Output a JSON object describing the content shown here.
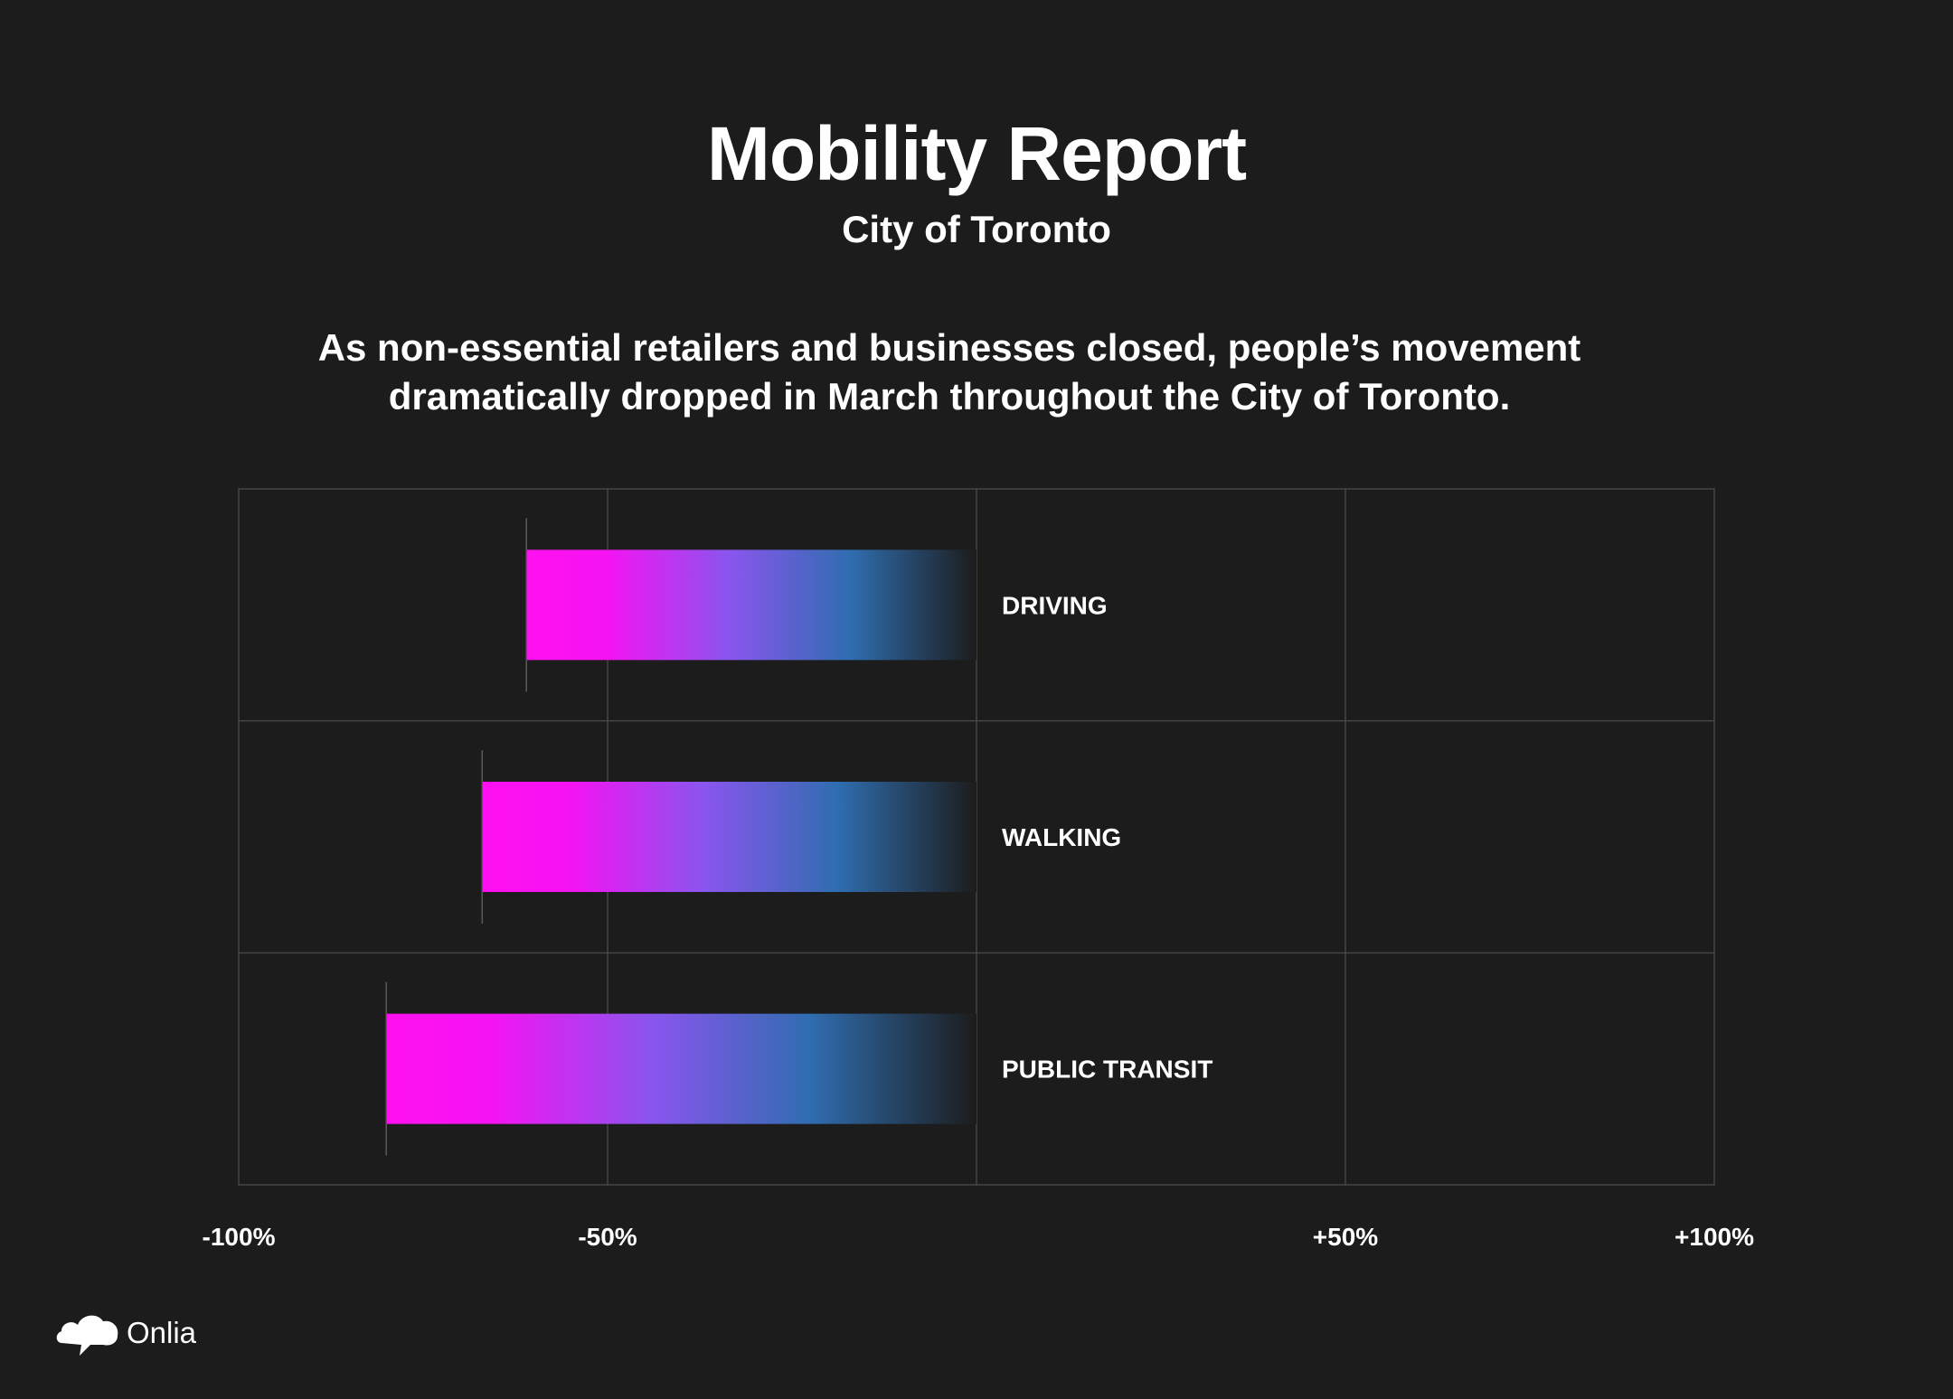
{
  "header": {
    "title": "Mobility Report",
    "subtitle": "City of Toronto",
    "description": "As non-essential retailers and businesses closed, people’s movement dramatically dropped in March throughout the City of Toronto."
  },
  "chart_data": {
    "type": "bar",
    "orientation": "horizontal",
    "categories": [
      "DRIVING",
      "WALKING",
      "PUBLIC TRANSIT"
    ],
    "values": [
      -61,
      -67,
      -80
    ],
    "xlim": [
      -100,
      100
    ],
    "tick_values": [
      -100,
      -50,
      50,
      100
    ],
    "tick_labels": [
      "-100%",
      "-50%",
      "+50%",
      "+100%"
    ],
    "grid": true,
    "colors": {
      "bar_start": "#ff10f0",
      "bar_mid": "#3a7fd9",
      "bar_end": "#1c1c1c",
      "grid": "#454545"
    }
  },
  "brand": {
    "name": "Onlia",
    "logo_icon": "cloud-speech-icon"
  }
}
